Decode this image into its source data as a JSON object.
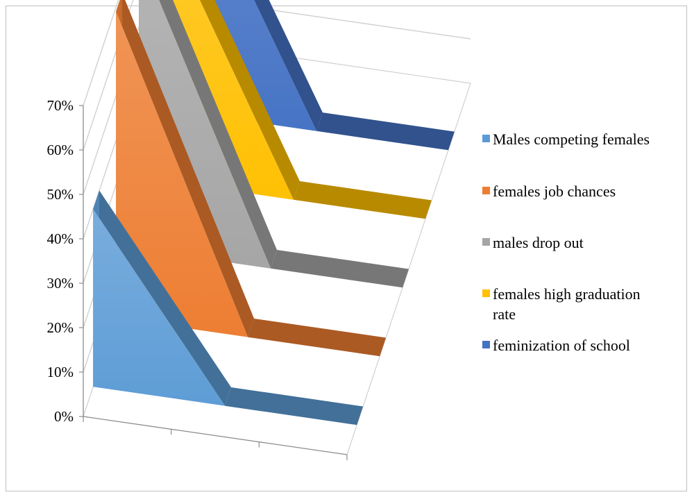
{
  "chart_data": {
    "type": "area",
    "variant": "3d-area",
    "title": "",
    "xlabel": "",
    "ylabel": "",
    "ylim": [
      0,
      0.7
    ],
    "yticks": [
      "0%",
      "10%",
      "20%",
      "30%",
      "40%",
      "50%",
      "60%",
      "70%"
    ],
    "categories": [
      "",
      "",
      ""
    ],
    "grid": true,
    "legend_position": "right",
    "series": [
      {
        "name": "Males competing females",
        "values": [
          0.4,
          0,
          0
        ],
        "color": "#5b9bd5"
      },
      {
        "name": "females job chances",
        "values": [
          0.69,
          0,
          0
        ],
        "color": "#ed7d31"
      },
      {
        "name": "males drop out",
        "values": [
          0.67,
          0,
          0
        ],
        "color": "#a5a5a5"
      },
      {
        "name": "females high graduation rate",
        "values": [
          0.59,
          0,
          0
        ],
        "color": "#ffc000"
      },
      {
        "name": "feminization of school",
        "values": [
          0.58,
          0,
          0
        ],
        "color": "#4472c4"
      }
    ]
  }
}
